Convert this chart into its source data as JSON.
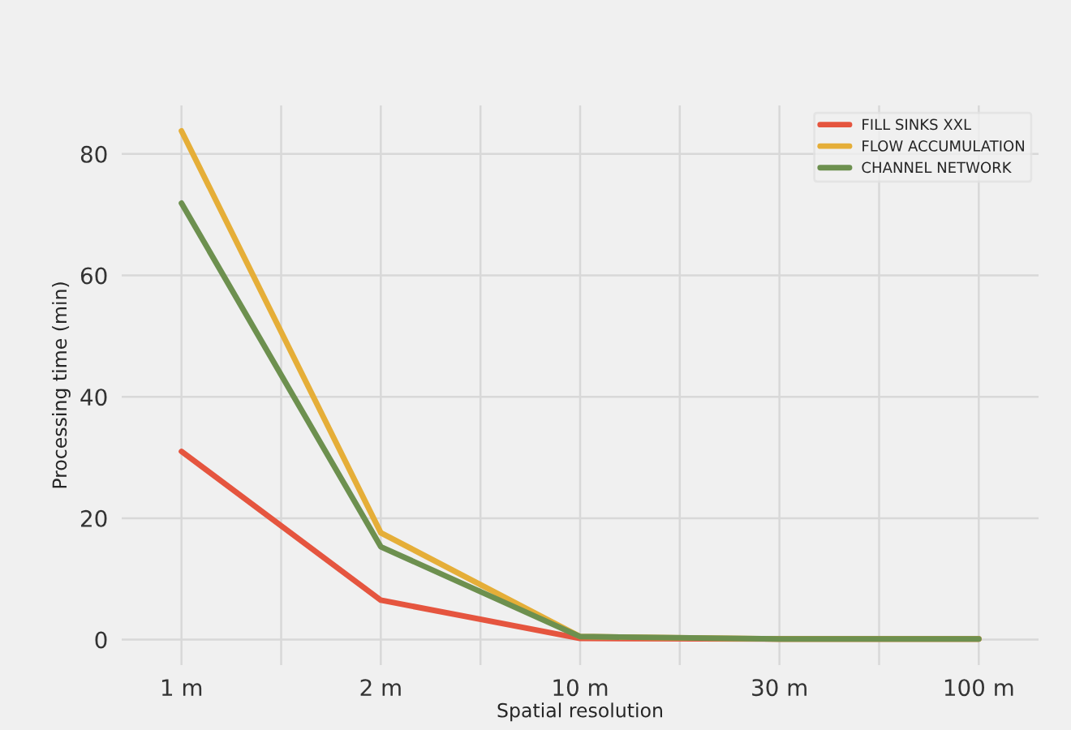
{
  "chart_data": {
    "type": "line",
    "xlabel": "Spatial resolution",
    "ylabel": "Processing time (min)",
    "categories": [
      "1 m",
      "2 m",
      "10 m",
      "30 m",
      "100 m"
    ],
    "series": [
      {
        "name": "FILL SINKS XXL",
        "color": "#e5553f",
        "values": [
          31,
          6.5,
          0.2,
          0.1,
          0.1
        ]
      },
      {
        "name": "FLOW ACCUMULATION",
        "color": "#e5ae38",
        "values": [
          83.8,
          17.6,
          0.5,
          0.1,
          0.1
        ]
      },
      {
        "name": "CHANNEL NETWORK",
        "color": "#6d904f",
        "values": [
          71.9,
          15.3,
          0.5,
          0.1,
          0.1
        ]
      }
    ],
    "ylim": [
      -4.2,
      88
    ],
    "yticks": [
      0,
      20,
      40,
      60,
      80
    ],
    "grid": true,
    "legend": "top right",
    "marker": "none",
    "line_style": "solid"
  }
}
